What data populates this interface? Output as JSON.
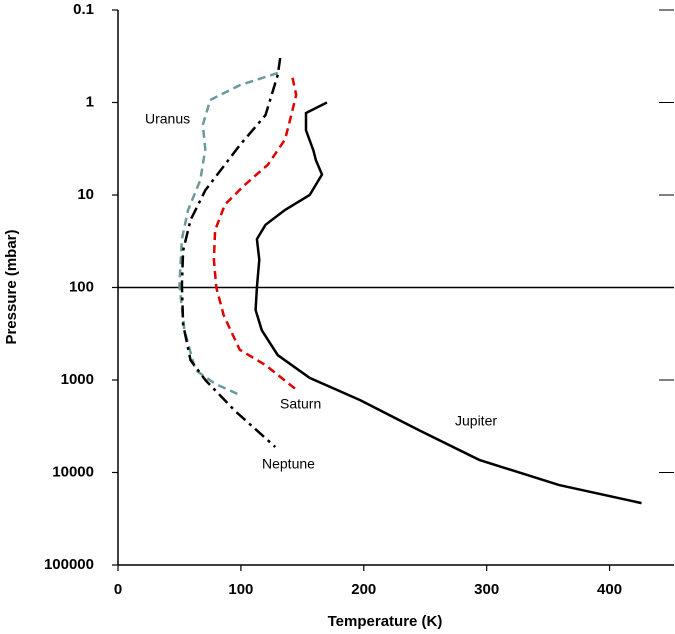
{
  "chart_data": {
    "type": "line",
    "x_label": "Temperature (K)",
    "y_label": "Pressure (mbar)",
    "xlim": [
      0,
      450
    ],
    "xticks": [
      0,
      100,
      200,
      300,
      400
    ],
    "ylim": [
      0.1,
      100000
    ],
    "yticks": [
      0.1,
      1,
      10,
      100,
      1000,
      10000,
      100000
    ],
    "ylog": true,
    "y_inverted": true,
    "reference_line": 100,
    "series": [
      {
        "name": "Jupiter",
        "color": "#000000",
        "dash": "solid",
        "x": [
          170,
          153,
          153,
          159,
          161,
          166,
          156,
          136,
          120,
          113,
          115,
          113,
          112,
          117,
          130,
          156,
          197,
          245,
          294,
          359,
          426
        ],
        "values": [
          1,
          1.3,
          2,
          3.3,
          4.2,
          6,
          10,
          14.5,
          21,
          30,
          50,
          100,
          175,
          290,
          540,
          950,
          1650,
          3500,
          7300,
          13700,
          21400
        ]
      },
      {
        "name": "Saturn",
        "color": "#e00000",
        "dash": "dashed",
        "x": [
          142,
          145,
          140,
          136,
          122,
          103,
          87,
          79,
          78,
          80,
          86,
          99,
          120,
          146
        ],
        "values": [
          0.54,
          0.83,
          1.55,
          2.5,
          4.7,
          7.8,
          12.7,
          24,
          50,
          100,
          200,
          470,
          690,
          1300
        ]
      },
      {
        "name": "Uranus",
        "color": "#6a9a9a",
        "dash": "dashed",
        "x": [
          130,
          99,
          75,
          69,
          71,
          67,
          57,
          52,
          50,
          54,
          63,
          79,
          99
        ],
        "values": [
          0.48,
          0.65,
          0.94,
          1.75,
          3.2,
          6.9,
          14.6,
          30,
          94,
          290,
          780,
          1100,
          1450
        ]
      },
      {
        "name": "Neptune",
        "color": "#000000",
        "dash": "dashdot",
        "x": [
          132,
          130,
          120,
          99,
          71,
          59,
          53,
          52,
          53,
          59,
          71,
          95,
          128
        ],
        "values": [
          0.33,
          0.5,
          1.37,
          2.9,
          8.9,
          18.7,
          40,
          94,
          250,
          610,
          1000,
          2140,
          5300
        ]
      }
    ]
  }
}
